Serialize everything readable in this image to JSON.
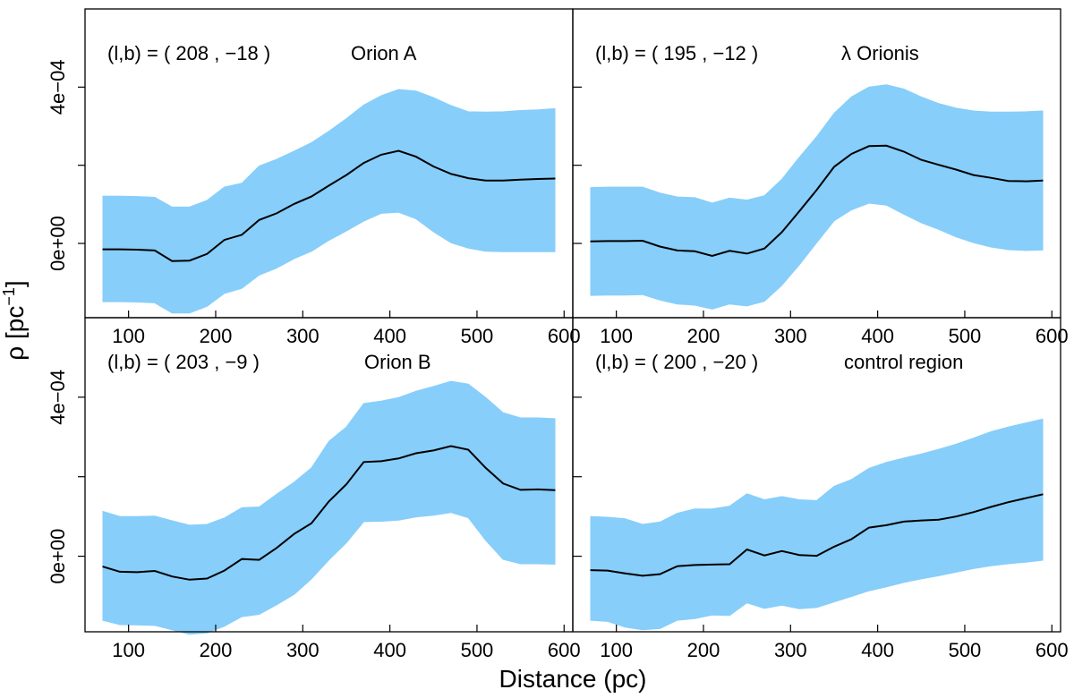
{
  "figure": {
    "xlabel": "Distance (pc)",
    "ylabel_main": "ρ [pc",
    "ylabel_sup": "−1",
    "ylabel_end": "]",
    "band_color": "#87CEFA",
    "line_color": "#000000"
  },
  "chart_data": [
    {
      "type": "area",
      "title": "Orion A",
      "coords": "(l,b) = ( 208 , −18 )",
      "xlim": [
        50,
        610
      ],
      "ylim": [
        -0.00019,
        0.0006
      ],
      "x_ticks": [
        100,
        200,
        300,
        400,
        500,
        600
      ],
      "x_tick_labels": [
        "100",
        "200",
        "300",
        "400",
        "500",
        "600"
      ],
      "y_ticks": [
        0,
        0.0002,
        0.0004
      ],
      "y_tick_labels": [
        "0e+00",
        "",
        "4e−04"
      ],
      "x": [
        70,
        90,
        110,
        130,
        150,
        170,
        190,
        210,
        230,
        250,
        270,
        290,
        310,
        330,
        350,
        370,
        390,
        410,
        430,
        450,
        470,
        490,
        510,
        530,
        550,
        570,
        590
      ],
      "series": [
        {
          "role": "mean",
          "values": [
            -1.5e-05,
            -1.5e-05,
            -1.6e-05,
            -1.8e-05,
            -4.5e-05,
            -4.4e-05,
            -2.7e-05,
            9e-06,
            2.2e-05,
            6e-05,
            7.7e-05,
            0.000101,
            0.00012,
            0.000148,
            0.000175,
            0.000206,
            0.000227,
            0.000237,
            0.000222,
            0.000197,
            0.000178,
            0.000167,
            0.000161,
            0.000161,
            0.000163,
            0.000165,
            0.000166
          ]
        },
        {
          "role": "upper",
          "values": [
            0.000121,
            0.000121,
            0.00012,
            0.000118,
            9.3e-05,
            9.3e-05,
            0.00011,
            0.000144,
            0.000154,
            0.000198,
            0.000215,
            0.000236,
            0.000258,
            0.000287,
            0.000319,
            0.000354,
            0.000378,
            0.000394,
            0.00039,
            0.000373,
            0.000353,
            0.000337,
            0.000336,
            0.000337,
            0.00034,
            0.000342,
            0.000345
          ]
        },
        {
          "role": "lower",
          "values": [
            -0.000149,
            -0.000149,
            -0.00015,
            -0.000152,
            -0.000178,
            -0.000178,
            -0.000161,
            -0.000128,
            -0.000115,
            -8.1e-05,
            -6.3e-05,
            -3.9e-05,
            -2e-05,
            8e-06,
            3.2e-05,
            5.7e-05,
            7.7e-05,
            8e-05,
            6.3e-05,
            3e-05,
            2e-06,
            -1.2e-05,
            -2e-05,
            -2.1e-05,
            -2.1e-05,
            -2.1e-05,
            -2.1e-05
          ]
        }
      ]
    },
    {
      "type": "area",
      "title": "λ Orionis",
      "coords": "(l,b) = ( 195 , −12 )",
      "xlim": [
        50,
        610
      ],
      "ylim": [
        -0.00019,
        0.0006
      ],
      "x_ticks": [
        100,
        200,
        300,
        400,
        500,
        600
      ],
      "x_tick_labels": [
        "100",
        "200",
        "300",
        "400",
        "500",
        "600"
      ],
      "y_ticks": [
        0,
        0.0002,
        0.0004
      ],
      "y_tick_labels": [
        "0e+00",
        "",
        "4e−04"
      ],
      "x": [
        70,
        90,
        110,
        130,
        150,
        170,
        190,
        210,
        230,
        250,
        270,
        290,
        310,
        330,
        350,
        370,
        390,
        410,
        430,
        450,
        470,
        490,
        510,
        530,
        550,
        570,
        590
      ],
      "series": [
        {
          "role": "mean",
          "values": [
            5e-06,
            6e-06,
            6e-06,
            7e-06,
            -8e-06,
            -1.8e-05,
            -2e-05,
            -3.2e-05,
            -1.9e-05,
            -2.6e-05,
            -1.3e-05,
            2.9e-05,
            8.2e-05,
            0.000137,
            0.000196,
            0.000229,
            0.000249,
            0.00025,
            0.000235,
            0.000214,
            0.000201,
            0.000189,
            0.000175,
            0.000168,
            0.00016,
            0.000159,
            0.000161
          ]
        },
        {
          "role": "upper",
          "values": [
            0.000143,
            0.000144,
            0.000144,
            0.000144,
            0.000129,
            0.000119,
            0.000117,
            0.000103,
            0.000116,
            0.000111,
            0.000122,
            0.000164,
            0.00022,
            0.000273,
            0.000333,
            0.000375,
            0.0004,
            0.000406,
            0.000395,
            0.000375,
            0.000358,
            0.000346,
            0.000339,
            0.000336,
            0.000336,
            0.000337,
            0.000339
          ]
        },
        {
          "role": "lower",
          "values": [
            -0.000133,
            -0.000132,
            -0.000132,
            -0.000131,
            -0.000145,
            -0.000155,
            -0.000158,
            -0.000168,
            -0.000155,
            -0.00016,
            -0.000148,
            -0.000107,
            -5.5e-05,
            2e-06,
            5.8e-05,
            8.6e-05,
            0.000103,
            9.8e-05,
            7.5e-05,
            5.3e-05,
            3.6e-05,
            1.7e-05,
            2e-06,
            -9e-06,
            -1.6e-05,
            -1.8e-05,
            -1.7e-05
          ]
        }
      ]
    },
    {
      "type": "area",
      "title": "Orion B",
      "coords": "(l,b) = ( 203 , −9 )",
      "xlim": [
        50,
        610
      ],
      "ylim": [
        -0.00019,
        0.0006
      ],
      "x_ticks": [
        100,
        200,
        300,
        400,
        500,
        600
      ],
      "x_tick_labels": [
        "100",
        "200",
        "300",
        "400",
        "500",
        "600"
      ],
      "y_ticks": [
        0,
        0.0002,
        0.0004
      ],
      "y_tick_labels": [
        "0e+00",
        "",
        "4e−04"
      ],
      "x": [
        70,
        90,
        110,
        130,
        150,
        170,
        190,
        210,
        230,
        250,
        270,
        290,
        310,
        330,
        350,
        370,
        390,
        410,
        430,
        450,
        470,
        490,
        510,
        530,
        550,
        570,
        590
      ],
      "series": [
        {
          "role": "mean",
          "values": [
            -2.6e-05,
            -3.9e-05,
            -4e-05,
            -3.7e-05,
            -5.1e-05,
            -5.9e-05,
            -5.6e-05,
            -3.6e-05,
            -7e-06,
            -9e-06,
            2.1e-05,
            5.6e-05,
            8.3e-05,
            0.000138,
            0.000181,
            0.000237,
            0.000239,
            0.000246,
            0.000259,
            0.000266,
            0.000277,
            0.000268,
            0.000222,
            0.000183,
            0.000167,
            0.000168,
            0.000166
          ]
        },
        {
          "role": "upper",
          "values": [
            0.000113,
            0.0001,
            0.0001,
            0.000101,
            8.9e-05,
            7.8e-05,
            8e-05,
            9.6e-05,
            0.000122,
            0.000124,
            0.000156,
            0.000186,
            0.000222,
            0.000289,
            0.000325,
            0.000384,
            0.00039,
            0.000399,
            0.000415,
            0.000427,
            0.00044,
            0.000433,
            0.000399,
            0.000361,
            0.000348,
            0.000348,
            0.000346
          ]
        },
        {
          "role": "lower",
          "values": [
            -0.000161,
            -0.000172,
            -0.000173,
            -0.000174,
            -0.000185,
            -0.000196,
            -0.000193,
            -0.000176,
            -0.000152,
            -0.000146,
            -0.000122,
            -9.6e-05,
            -5.7e-05,
            -9e-06,
            3.4e-05,
            8.7e-05,
            8.8e-05,
            9.1e-05,
            9.9e-05,
            0.000103,
            0.00011,
            9.7e-05,
            4e-05,
            -8e-06,
            -1.9e-05,
            -1.9e-05,
            -2e-05
          ]
        }
      ]
    },
    {
      "type": "area",
      "title": "control region",
      "coords": "(l,b) = ( 200 , −20 )",
      "xlim": [
        50,
        610
      ],
      "ylim": [
        -0.00019,
        0.0006
      ],
      "x_ticks": [
        100,
        200,
        300,
        400,
        500,
        600
      ],
      "x_tick_labels": [
        "100",
        "200",
        "300",
        "400",
        "500",
        "600"
      ],
      "y_ticks": [
        0,
        0.0002,
        0.0004
      ],
      "y_tick_labels": [
        "0e+00",
        "",
        "4e−04"
      ],
      "x": [
        70,
        90,
        110,
        130,
        150,
        170,
        190,
        210,
        230,
        250,
        270,
        290,
        310,
        330,
        350,
        370,
        390,
        410,
        430,
        450,
        470,
        490,
        510,
        530,
        550,
        570,
        590
      ],
      "series": [
        {
          "role": "mean",
          "values": [
            -3.5e-05,
            -3.6e-05,
            -4.3e-05,
            -4.9e-05,
            -4.5e-05,
            -2.5e-05,
            -2.2e-05,
            -2.1e-05,
            -2e-05,
            1.7e-05,
            2e-06,
            1.3e-05,
            3e-06,
            1e-06,
            2.4e-05,
            4.3e-05,
            7.2e-05,
            7.8e-05,
            8.7e-05,
            9e-05,
            9.2e-05,
            0.0001,
            0.000111,
            0.000124,
            0.000136,
            0.000146,
            0.000156
          ]
        },
        {
          "role": "upper",
          "values": [
            0.0001,
            9.8e-05,
            9.4e-05,
            8e-05,
            8.6e-05,
            0.000108,
            0.000119,
            0.000119,
            0.000126,
            0.000157,
            0.000142,
            0.00015,
            0.000142,
            0.00014,
            0.000176,
            0.000193,
            0.000221,
            0.000236,
            0.000247,
            0.000257,
            0.000269,
            0.000282,
            0.000297,
            0.000313,
            0.000325,
            0.000335,
            0.000345
          ]
        },
        {
          "role": "lower",
          "values": [
            -0.000161,
            -0.000164,
            -0.000178,
            -0.000185,
            -0.000182,
            -0.000161,
            -0.000157,
            -0.000148,
            -0.000149,
            -0.000117,
            -0.000131,
            -0.000123,
            -0.000132,
            -0.000129,
            -0.000115,
            -0.000101,
            -8.7e-05,
            -7.7e-05,
            -6.6e-05,
            -5.7e-05,
            -4.9e-05,
            -4e-05,
            -3.1e-05,
            -2.4e-05,
            -1.9e-05,
            -1.5e-05,
            -1e-05
          ]
        }
      ]
    }
  ]
}
